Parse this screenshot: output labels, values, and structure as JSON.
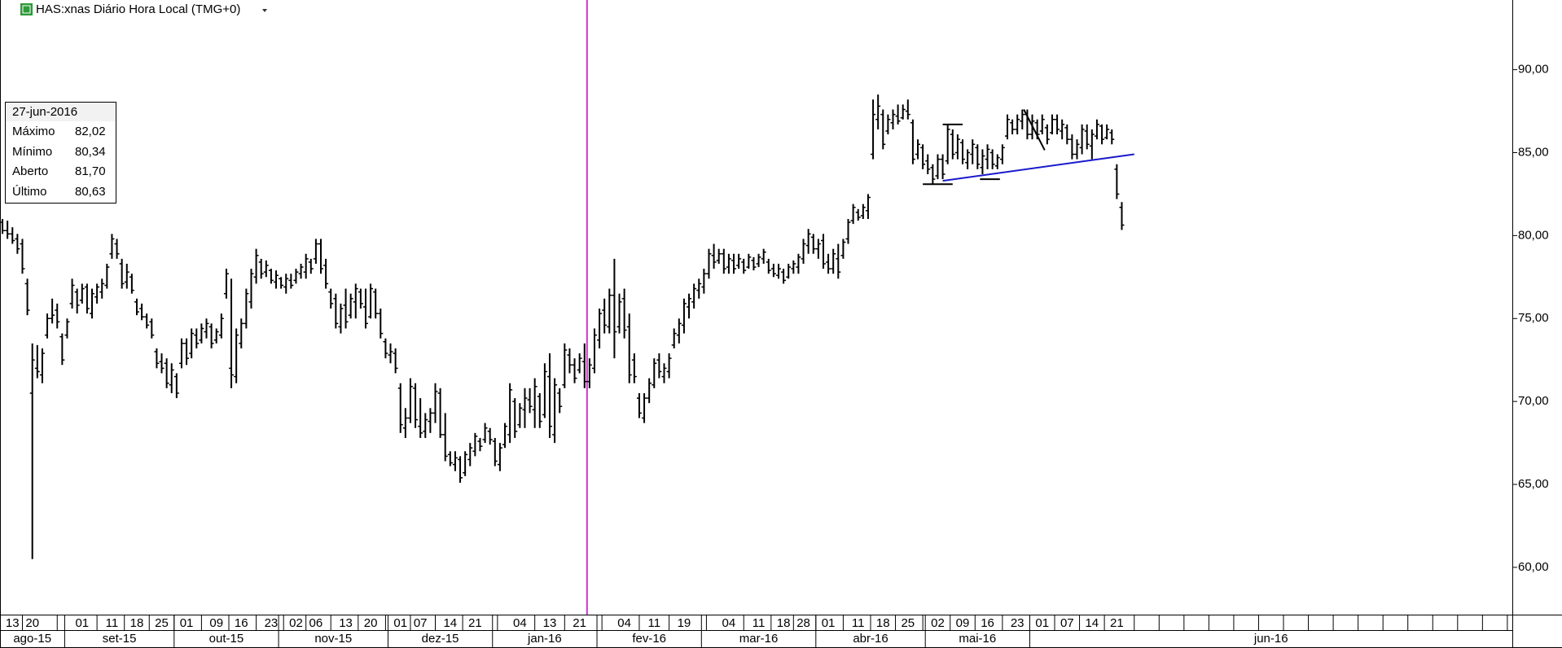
{
  "header": {
    "title": "HAS:xnas Diário Hora Local (TMG+0)"
  },
  "chart_data": {
    "type": "ohlc",
    "color": "#000000",
    "categories": [
      null,
      null,
      "13",
      null,
      null,
      null,
      "20",
      null,
      null,
      null,
      null,
      null,
      null,
      null,
      null,
      null,
      "01",
      null,
      null,
      null,
      null,
      null,
      "11",
      null,
      null,
      null,
      null,
      "18",
      null,
      null,
      null,
      null,
      "25",
      null,
      null,
      null,
      null,
      "01",
      null,
      null,
      null,
      null,
      null,
      "09",
      null,
      null,
      null,
      null,
      "16",
      null,
      null,
      null,
      null,
      null,
      "23",
      null,
      null,
      null,
      null,
      "02",
      null,
      null,
      null,
      "06",
      null,
      null,
      null,
      null,
      null,
      "13",
      null,
      null,
      null,
      null,
      "20",
      null,
      null,
      null,
      null,
      null,
      "01",
      null,
      null,
      null,
      "07",
      null,
      null,
      null,
      null,
      null,
      "14",
      null,
      null,
      null,
      null,
      "21",
      null,
      null,
      null,
      null,
      null,
      null,
      null,
      null,
      "04",
      null,
      null,
      null,
      null,
      null,
      "13",
      null,
      null,
      null,
      null,
      null,
      "21",
      null,
      null,
      null,
      null,
      null,
      null,
      null,
      null,
      "04",
      null,
      null,
      null,
      null,
      null,
      "11",
      null,
      null,
      null,
      null,
      null,
      "19",
      null,
      null,
      null,
      null,
      null,
      null,
      null,
      null,
      "04",
      null,
      null,
      null,
      null,
      null,
      "11",
      null,
      null,
      null,
      null,
      "18",
      null,
      null,
      null,
      "28",
      null,
      null,
      null,
      null,
      "01",
      null,
      null,
      null,
      null,
      null,
      "11",
      null,
      null,
      null,
      null,
      "18",
      null,
      null,
      null,
      null,
      "25",
      null,
      null,
      null,
      null,
      null,
      "02",
      null,
      null,
      null,
      null,
      "09",
      null,
      null,
      null,
      null,
      "16",
      null,
      null,
      null,
      null,
      null,
      "23",
      null,
      null,
      null,
      null,
      "01",
      null,
      null,
      null,
      null,
      "07",
      null,
      null,
      null,
      null,
      "14",
      null,
      null,
      null,
      null,
      "21",
      null
    ],
    "month_categories": [
      "ago-15",
      null,
      null,
      null,
      null,
      null,
      null,
      null,
      null,
      null,
      null,
      null,
      null,
      "set-15",
      null,
      null,
      null,
      null,
      null,
      null,
      null,
      null,
      null,
      null,
      null,
      null,
      null,
      null,
      null,
      null,
      null,
      null,
      null,
      null,
      null,
      "out-15",
      null,
      null,
      null,
      null,
      null,
      null,
      null,
      null,
      null,
      null,
      null,
      null,
      null,
      null,
      null,
      null,
      null,
      null,
      null,
      null,
      "nov-15",
      null,
      null,
      null,
      null,
      null,
      null,
      null,
      null,
      null,
      null,
      null,
      null,
      null,
      null,
      null,
      null,
      null,
      null,
      null,
      null,
      null,
      "dez-15",
      null,
      null,
      null,
      null,
      null,
      null,
      null,
      null,
      null,
      null,
      null,
      null,
      null,
      null,
      null,
      null,
      null,
      null,
      null,
      null,
      "jan-16",
      null,
      null,
      null,
      null,
      null,
      null,
      null,
      null,
      null,
      null,
      null,
      null,
      null,
      null,
      null,
      null,
      null,
      null,
      null,
      null,
      "fev-16",
      null,
      null,
      null,
      null,
      null,
      null,
      null,
      null,
      null,
      null,
      null,
      null,
      null,
      null,
      null,
      null,
      null,
      null,
      null,
      null,
      "mar-16",
      null,
      null,
      null,
      null,
      null,
      null,
      null,
      null,
      null,
      null,
      null,
      null,
      null,
      null,
      null,
      null,
      null,
      null,
      null,
      null,
      null,
      null,
      "abr-16",
      null,
      null,
      null,
      null,
      null,
      null,
      null,
      null,
      null,
      null,
      null,
      null,
      null,
      null,
      null,
      null,
      null,
      null,
      null,
      null,
      null,
      "mai-16",
      null,
      null,
      null,
      null,
      null,
      null,
      null,
      null,
      null,
      null,
      null,
      null,
      null,
      null,
      null,
      null,
      null,
      null,
      null,
      null,
      "jun-16",
      null,
      null,
      null,
      null,
      null,
      null,
      null,
      null,
      null,
      null,
      null,
      null,
      null,
      null,
      null,
      null,
      null,
      null
    ],
    "open": [
      80.8,
      80.3,
      80.1,
      79.8,
      79.5,
      77.1,
      70.5,
      72.0,
      71.6,
      74.0,
      75.0,
      75.5,
      73.9,
      74.0,
      75.9,
      76.6,
      76.1,
      76.9,
      75.3,
      76.3,
      76.6,
      77.0,
      78.9,
      79.5,
      78.3,
      77.2,
      77.5,
      76.0,
      75.6,
      75.1,
      74.8,
      73.0,
      72.4,
      72.3,
      71.0,
      71.5,
      72.3,
      73.5,
      72.9,
      74.0,
      73.7,
      74.2,
      74.5,
      73.7,
      74.0,
      76.5,
      72.0,
      71.5,
      73.5,
      74.7,
      76.0,
      77.5,
      78.4,
      77.8,
      77.9,
      77.2,
      77.4,
      76.9,
      77.3,
      77.3,
      77.7,
      77.8,
      78.4,
      78.6,
      79.5,
      78.2,
      76.6,
      76.2,
      74.5,
      75.8,
      75.2,
      76.0,
      76.6,
      75.7,
      75.1,
      76.6,
      75.3,
      73.6,
      72.8,
      72.9,
      70.8,
      68.4,
      69.0,
      70.8,
      68.5,
      68.2,
      68.8,
      69.3,
      70.5,
      68.0,
      66.8,
      66.2,
      66.5,
      65.7,
      66.5,
      67.0,
      67.6,
      67.7,
      68.2,
      67.6,
      66.2,
      67.4,
      68.0,
      70.0,
      68.6,
      69.5,
      70.1,
      69.5,
      70.3,
      69.2,
      71.5,
      68.0,
      70.5,
      71.0,
      72.8,
      72.2,
      71.9,
      72.4,
      71.2,
      72.0,
      73.7,
      75.5,
      74.5,
      76.4,
      74.5,
      76.2,
      74.5,
      72.5,
      70.2,
      69.0,
      70.2,
      71.0,
      72.5,
      71.5,
      71.8,
      73.4,
      74.0,
      74.6,
      75.7,
      76.0,
      76.7,
      76.9,
      77.7,
      78.8,
      78.5,
      78.9,
      78.1,
      78.5,
      78.2,
      78.4,
      78.1,
      78.5,
      78.3,
      78.6,
      78.4,
      78.0,
      77.6,
      77.8,
      77.5,
      78.0,
      78.1,
      78.6,
      79.4,
      79.9,
      79.2,
      79.7,
      78.4,
      78.0,
      78.6,
      78.8,
      79.8,
      80.9,
      81.4,
      81.2,
      81.5,
      84.9,
      87.0,
      87.3,
      86.3,
      86.8,
      87.2,
      87.1,
      87.5,
      86.8,
      84.9,
      85.3,
      84.5,
      84.1,
      83.6,
      84.6,
      84.5,
      86.1,
      85.0,
      85.6,
      84.4,
      84.9,
      85.3,
      84.1,
      84.6,
      85.0,
      84.2,
      84.6,
      86.0,
      86.8,
      86.4,
      86.9,
      87.3,
      86.1,
      86.8,
      86.3,
      86.5,
      86.2,
      87.0,
      86.3,
      86.5,
      85.8,
      84.9,
      85.3,
      86.3,
      85.4,
      86.0,
      86.6,
      85.9,
      86.2,
      84.0,
      81.7
    ],
    "high": [
      81.0,
      80.9,
      80.5,
      80.1,
      79.8,
      77.4,
      73.5,
      73.4,
      73.2,
      75.3,
      76.2,
      75.9,
      74.1,
      75.0,
      77.4,
      76.8,
      77.1,
      77.1,
      76.8,
      77.1,
      77.4,
      78.3,
      80.1,
      79.8,
      78.6,
      78.3,
      77.7,
      76.2,
      75.9,
      75.3,
      75.0,
      73.2,
      72.9,
      72.6,
      72.3,
      71.7,
      73.8,
      73.8,
      74.4,
      74.4,
      74.7,
      75.0,
      74.7,
      74.4,
      75.3,
      78.0,
      77.4,
      74.4,
      75.0,
      76.8,
      78.0,
      79.2,
      78.6,
      78.5,
      78.0,
      77.9,
      77.5,
      77.7,
      77.7,
      78.0,
      78.3,
      78.9,
      78.6,
      79.8,
      79.8,
      78.6,
      76.8,
      76.5,
      75.9,
      76.8,
      76.5,
      77.1,
      76.8,
      76.8,
      77.1,
      76.8,
      75.6,
      73.8,
      73.5,
      73.2,
      71.1,
      69.6,
      71.4,
      71.1,
      70.2,
      69.3,
      69.6,
      71.1,
      70.8,
      69.3,
      67.0,
      67.0,
      66.7,
      67.0,
      67.5,
      68.1,
      67.8,
      68.7,
      68.4,
      67.8,
      67.5,
      68.7,
      71.1,
      70.2,
      69.9,
      70.8,
      70.8,
      71.4,
      70.5,
      72.3,
      72.9,
      71.4,
      70.8,
      73.5,
      73.2,
      72.6,
      72.9,
      73.5,
      72.6,
      74.4,
      75.6,
      76.2,
      76.8,
      78.6,
      76.5,
      76.8,
      75.3,
      72.9,
      70.5,
      70.5,
      71.4,
      72.6,
      72.9,
      72.3,
      72.9,
      74.4,
      75.0,
      76.2,
      76.5,
      77.1,
      77.4,
      78.0,
      79.2,
      79.5,
      79.2,
      79.2,
      78.9,
      78.9,
      78.9,
      78.6,
      78.9,
      78.7,
      78.9,
      79.2,
      78.6,
      78.3,
      78.3,
      78.0,
      78.3,
      78.5,
      78.9,
      79.8,
      80.4,
      80.1,
      79.8,
      80.1,
      78.9,
      79.2,
      79.5,
      79.8,
      81.0,
      81.9,
      81.6,
      81.9,
      82.5,
      88.2,
      88.5,
      87.6,
      87.3,
      87.6,
      87.9,
      87.9,
      88.2,
      87.0,
      85.8,
      85.5,
      84.9,
      84.3,
      84.9,
      84.9,
      86.7,
      86.4,
      86.1,
      85.8,
      85.2,
      85.8,
      85.5,
      85.2,
      85.5,
      85.2,
      84.9,
      85.5,
      87.3,
      87.0,
      87.3,
      87.6,
      87.6,
      87.3,
      87.0,
      87.3,
      86.7,
      87.3,
      87.3,
      87.0,
      86.7,
      86.1,
      85.8,
      86.7,
      86.7,
      86.4,
      87.0,
      86.7,
      86.7,
      86.4,
      84.3,
      82.02
    ],
    "low": [
      80.1,
      79.8,
      79.5,
      78.9,
      77.7,
      75.2,
      60.5,
      71.4,
      71.1,
      73.8,
      74.7,
      74.4,
      72.2,
      73.8,
      75.6,
      75.3,
      75.9,
      75.3,
      75.0,
      75.9,
      76.2,
      76.8,
      78.6,
      78.6,
      76.8,
      76.8,
      76.5,
      75.2,
      74.9,
      74.4,
      73.8,
      72.0,
      71.7,
      70.8,
      70.5,
      70.2,
      72.0,
      72.2,
      72.6,
      73.2,
      73.5,
      73.8,
      73.2,
      73.5,
      73.8,
      76.2,
      70.8,
      71.1,
      73.2,
      74.4,
      75.6,
      77.1,
      77.4,
      77.5,
      77.1,
      76.8,
      76.8,
      76.5,
      76.8,
      77.1,
      77.4,
      77.4,
      77.7,
      78.3,
      77.7,
      76.8,
      75.6,
      74.4,
      74.1,
      74.4,
      75.0,
      75.0,
      75.6,
      74.4,
      75.0,
      75.0,
      73.8,
      72.6,
      72.3,
      71.7,
      68.1,
      67.8,
      68.7,
      68.4,
      67.8,
      67.8,
      68.1,
      68.7,
      67.8,
      66.4,
      66.1,
      65.8,
      65.1,
      65.5,
      66.1,
      66.7,
      67.0,
      67.5,
      67.4,
      66.1,
      65.8,
      67.2,
      67.5,
      67.8,
      68.4,
      68.4,
      69.3,
      68.4,
      68.4,
      69.0,
      67.8,
      67.5,
      69.3,
      70.8,
      71.7,
      71.1,
      71.7,
      70.8,
      70.8,
      71.7,
      73.2,
      74.1,
      74.1,
      72.6,
      74.1,
      73.8,
      71.1,
      71.1,
      69.0,
      68.7,
      69.9,
      70.8,
      71.4,
      71.1,
      71.4,
      73.2,
      73.5,
      74.1,
      75.0,
      75.6,
      76.2,
      76.5,
      77.4,
      78.0,
      78.3,
      77.7,
      77.7,
      77.7,
      78.0,
      77.7,
      78.0,
      77.9,
      78.1,
      78.3,
      77.7,
      77.5,
      77.4,
      77.1,
      77.4,
      77.7,
      77.7,
      78.3,
      78.9,
      78.9,
      78.6,
      78.0,
      77.7,
      77.7,
      77.4,
      78.6,
      79.5,
      80.7,
      80.9,
      81.0,
      81.0,
      84.6,
      86.4,
      85.2,
      86.1,
      86.4,
      86.7,
      87.0,
      87.0,
      84.3,
      84.6,
      84.0,
      83.7,
      83.1,
      83.4,
      83.4,
      84.3,
      84.6,
      84.6,
      84.3,
      84.0,
      84.3,
      84.0,
      83.7,
      84.0,
      84.0,
      84.0,
      84.3,
      85.8,
      86.1,
      86.1,
      86.4,
      85.8,
      85.8,
      85.8,
      86.1,
      85.5,
      86.1,
      86.1,
      85.8,
      85.5,
      84.6,
      84.6,
      84.9,
      85.2,
      84.6,
      85.8,
      85.5,
      85.8,
      85.5,
      82.2,
      80.34
    ],
    "close": [
      80.3,
      80.1,
      79.7,
      79.2,
      78.0,
      75.5,
      72.5,
      71.8,
      72.9,
      75.0,
      75.2,
      74.8,
      72.5,
      74.8,
      77.0,
      75.8,
      76.8,
      75.6,
      76.5,
      76.9,
      77.1,
      78.1,
      79.8,
      78.9,
      77.1,
      77.8,
      76.7,
      75.4,
      75.1,
      74.6,
      74.0,
      72.3,
      72.0,
      71.1,
      71.9,
      70.5,
      73.5,
      72.6,
      74.1,
      73.5,
      74.4,
      74.7,
      73.5,
      74.2,
      75.0,
      77.7,
      71.6,
      74.0,
      74.7,
      76.5,
      77.7,
      78.8,
      77.7,
      78.2,
      77.3,
      77.6,
      77.0,
      77.4,
      77.0,
      77.8,
      78.1,
      78.6,
      78.0,
      79.5,
      78.0,
      77.1,
      75.9,
      74.7,
      75.6,
      74.8,
      76.2,
      76.8,
      75.9,
      74.7,
      76.8,
      75.3,
      74.1,
      72.9,
      73.0,
      72.0,
      68.6,
      69.0,
      70.9,
      68.9,
      68.1,
      68.9,
      69.3,
      70.6,
      68.0,
      66.7,
      66.3,
      66.6,
      65.4,
      66.8,
      67.2,
      67.9,
      67.3,
      68.4,
      67.7,
      66.4,
      67.2,
      68.5,
      70.7,
      68.2,
      69.6,
      70.2,
      69.7,
      70.9,
      68.8,
      71.8,
      68.5,
      71.0,
      69.7,
      73.1,
      72.2,
      71.4,
      72.6,
      71.2,
      72.2,
      74.0,
      75.3,
      74.6,
      76.4,
      74.2,
      76.0,
      74.3,
      71.6,
      71.5,
      69.3,
      70.2,
      71.1,
      72.3,
      71.8,
      72.0,
      72.6,
      74.1,
      74.7,
      75.9,
      76.2,
      76.8,
      77.1,
      77.7,
      78.9,
      78.4,
      78.9,
      78.0,
      78.6,
      78.0,
      78.6,
      77.9,
      78.7,
      78.1,
      78.7,
      79.0,
      77.9,
      77.7,
      78.0,
      77.3,
      78.1,
      78.3,
      78.7,
      79.5,
      80.1,
      79.2,
      79.5,
      78.3,
      78.0,
      78.9,
      77.8,
      79.6,
      80.8,
      81.7,
      81.1,
      81.7,
      82.3,
      87.3,
      87.8,
      85.5,
      87.0,
      87.3,
      86.9,
      87.6,
      87.3,
      84.6,
      85.5,
      84.3,
      84.0,
      83.4,
      84.6,
      83.7,
      86.4,
      84.9,
      85.8,
      84.6,
      85.0,
      85.5,
      84.3,
      84.8,
      85.2,
      84.3,
      84.7,
      85.3,
      87.0,
      86.4,
      87.0,
      87.3,
      86.1,
      86.9,
      86.1,
      87.0,
      85.8,
      87.0,
      86.4,
      86.7,
      85.8,
      84.9,
      85.5,
      86.4,
      85.5,
      86.1,
      86.7,
      85.8,
      86.4,
      85.8,
      82.5,
      80.63
    ],
    "xlim": [
      0,
      304
    ],
    "ylim": [
      57.15,
      94.2
    ],
    "yticks": [
      {
        "value": 60,
        "label": "60,00"
      },
      {
        "value": 65,
        "label": "65,00"
      },
      {
        "value": 70,
        "label": "70,00"
      },
      {
        "value": 75,
        "label": "75,00"
      },
      {
        "value": 80,
        "label": "80,00"
      },
      {
        "value": 85,
        "label": "85,00"
      },
      {
        "value": 90,
        "label": "90,00"
      }
    ],
    "vertical_line": {
      "x": 117.5,
      "color": "#d42fd4"
    },
    "drawings": [
      {
        "x": [
          189,
          227.5
        ],
        "y": [
          83.3,
          84.9
        ],
        "color": "#1a1acc"
      },
      {
        "x": [
          185,
          191
        ],
        "y": [
          83.1,
          83.1
        ],
        "color": "#000000"
      },
      {
        "x": [
          189,
          193
        ],
        "y": [
          86.7,
          86.7
        ],
        "color": "#000000"
      },
      {
        "x": [
          196.5,
          200.5
        ],
        "y": [
          83.4,
          83.4
        ],
        "color": "#000000"
      },
      {
        "x": [
          205.3,
          209.5
        ],
        "y": [
          87.6,
          85.15
        ],
        "color": "#000000"
      }
    ],
    "info_box": {
      "title": "27-jun-2016",
      "rows": [
        {
          "label": "Máximo",
          "value": "82,02"
        },
        {
          "label": "Mínimo",
          "value": "80,34"
        },
        {
          "label": "Aberto",
          "value": "81,70"
        },
        {
          "label": "Último",
          "value": "80,63"
        }
      ]
    }
  }
}
